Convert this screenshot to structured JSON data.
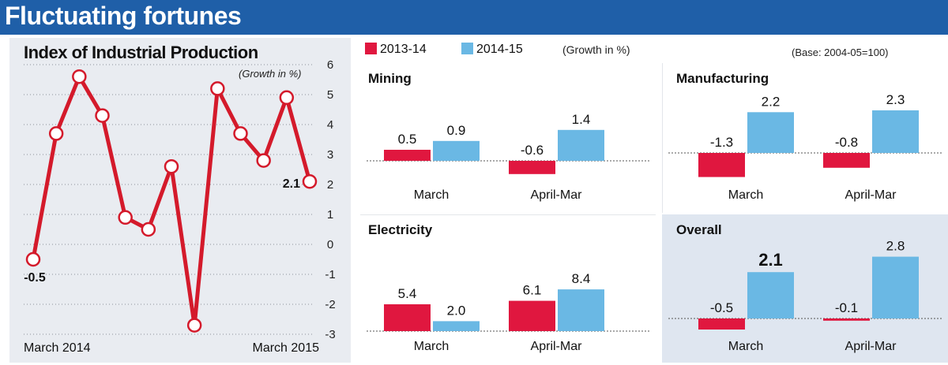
{
  "header": {
    "title": "Fluctuating fortunes"
  },
  "colors": {
    "header_bg": "#1f5fa8",
    "series_2013": "#e0173f",
    "series_2014": "#6ab8e4",
    "line": "#d41a2b",
    "panel_bg": "#e9ecf1",
    "overall_bg": "#dfe6f0"
  },
  "legend": {
    "items": [
      {
        "label": "2013-14"
      },
      {
        "label": "2014-15"
      }
    ],
    "note": "(Growth in %)"
  },
  "base_note": "(Base: 2004-05=100)",
  "chart_data": [
    {
      "type": "line",
      "title": "Index of Industrial Production",
      "unit_note": "(Growth in %)",
      "x": [
        "March 2014",
        "",
        "",
        "",
        "",
        "",
        "",
        "",
        "",
        "",
        "",
        "",
        "March 2015"
      ],
      "values": [
        -0.5,
        3.7,
        5.6,
        4.3,
        0.9,
        0.5,
        2.6,
        -2.7,
        5.2,
        3.7,
        2.8,
        4.9,
        2.1
      ],
      "point_labels": {
        "0": "-0.5",
        "12": "2.1"
      },
      "yticks": [
        "6",
        "5",
        "4",
        "3",
        "2",
        "1",
        "0",
        "-1",
        "-2",
        "-3"
      ],
      "ylim": [
        -3,
        6
      ],
      "x_axis_labels": {
        "start": "March 2014",
        "end": "March 2015"
      },
      "grid": true
    },
    {
      "type": "bar",
      "title": "Mining",
      "categories": [
        "March",
        "April-Mar"
      ],
      "series": [
        {
          "name": "2013-14",
          "values": [
            0.5,
            -0.6
          ]
        },
        {
          "name": "2014-15",
          "values": [
            0.9,
            1.4
          ]
        }
      ],
      "labels": [
        [
          "0.5",
          "-0.6"
        ],
        [
          "0.9",
          "1.4"
        ]
      ],
      "ylim": [
        -0.8,
        2.0
      ]
    },
    {
      "type": "bar",
      "title": "Manufacturing",
      "categories": [
        "March",
        "April-Mar"
      ],
      "series": [
        {
          "name": "2013-14",
          "values": [
            -1.3,
            -0.8
          ]
        },
        {
          "name": "2014-15",
          "values": [
            2.2,
            2.3
          ]
        }
      ],
      "labels": [
        [
          "-1.3",
          "-0.8"
        ],
        [
          "2.2",
          "2.3"
        ]
      ],
      "ylim": [
        -1.6,
        3.2
      ]
    },
    {
      "type": "bar",
      "title": "Electricity",
      "categories": [
        "March",
        "April-Mar"
      ],
      "series": [
        {
          "name": "2013-14",
          "values": [
            5.4,
            6.1
          ]
        },
        {
          "name": "2014-15",
          "values": [
            2.0,
            8.4
          ]
        }
      ],
      "labels": [
        [
          "5.4",
          "6.1"
        ],
        [
          "2.0",
          "8.4"
        ]
      ],
      "ylim": [
        0,
        12
      ]
    },
    {
      "type": "bar",
      "title": "Overall",
      "categories": [
        "March",
        "April-Mar"
      ],
      "series": [
        {
          "name": "2013-14",
          "values": [
            -0.5,
            -0.1
          ]
        },
        {
          "name": "2014-15",
          "values": [
            2.1,
            2.8
          ]
        }
      ],
      "labels": [
        [
          "-0.5",
          "-0.1"
        ],
        [
          "2.1",
          "2.8"
        ]
      ],
      "ylim": [
        -0.6,
        4.2
      ]
    }
  ]
}
